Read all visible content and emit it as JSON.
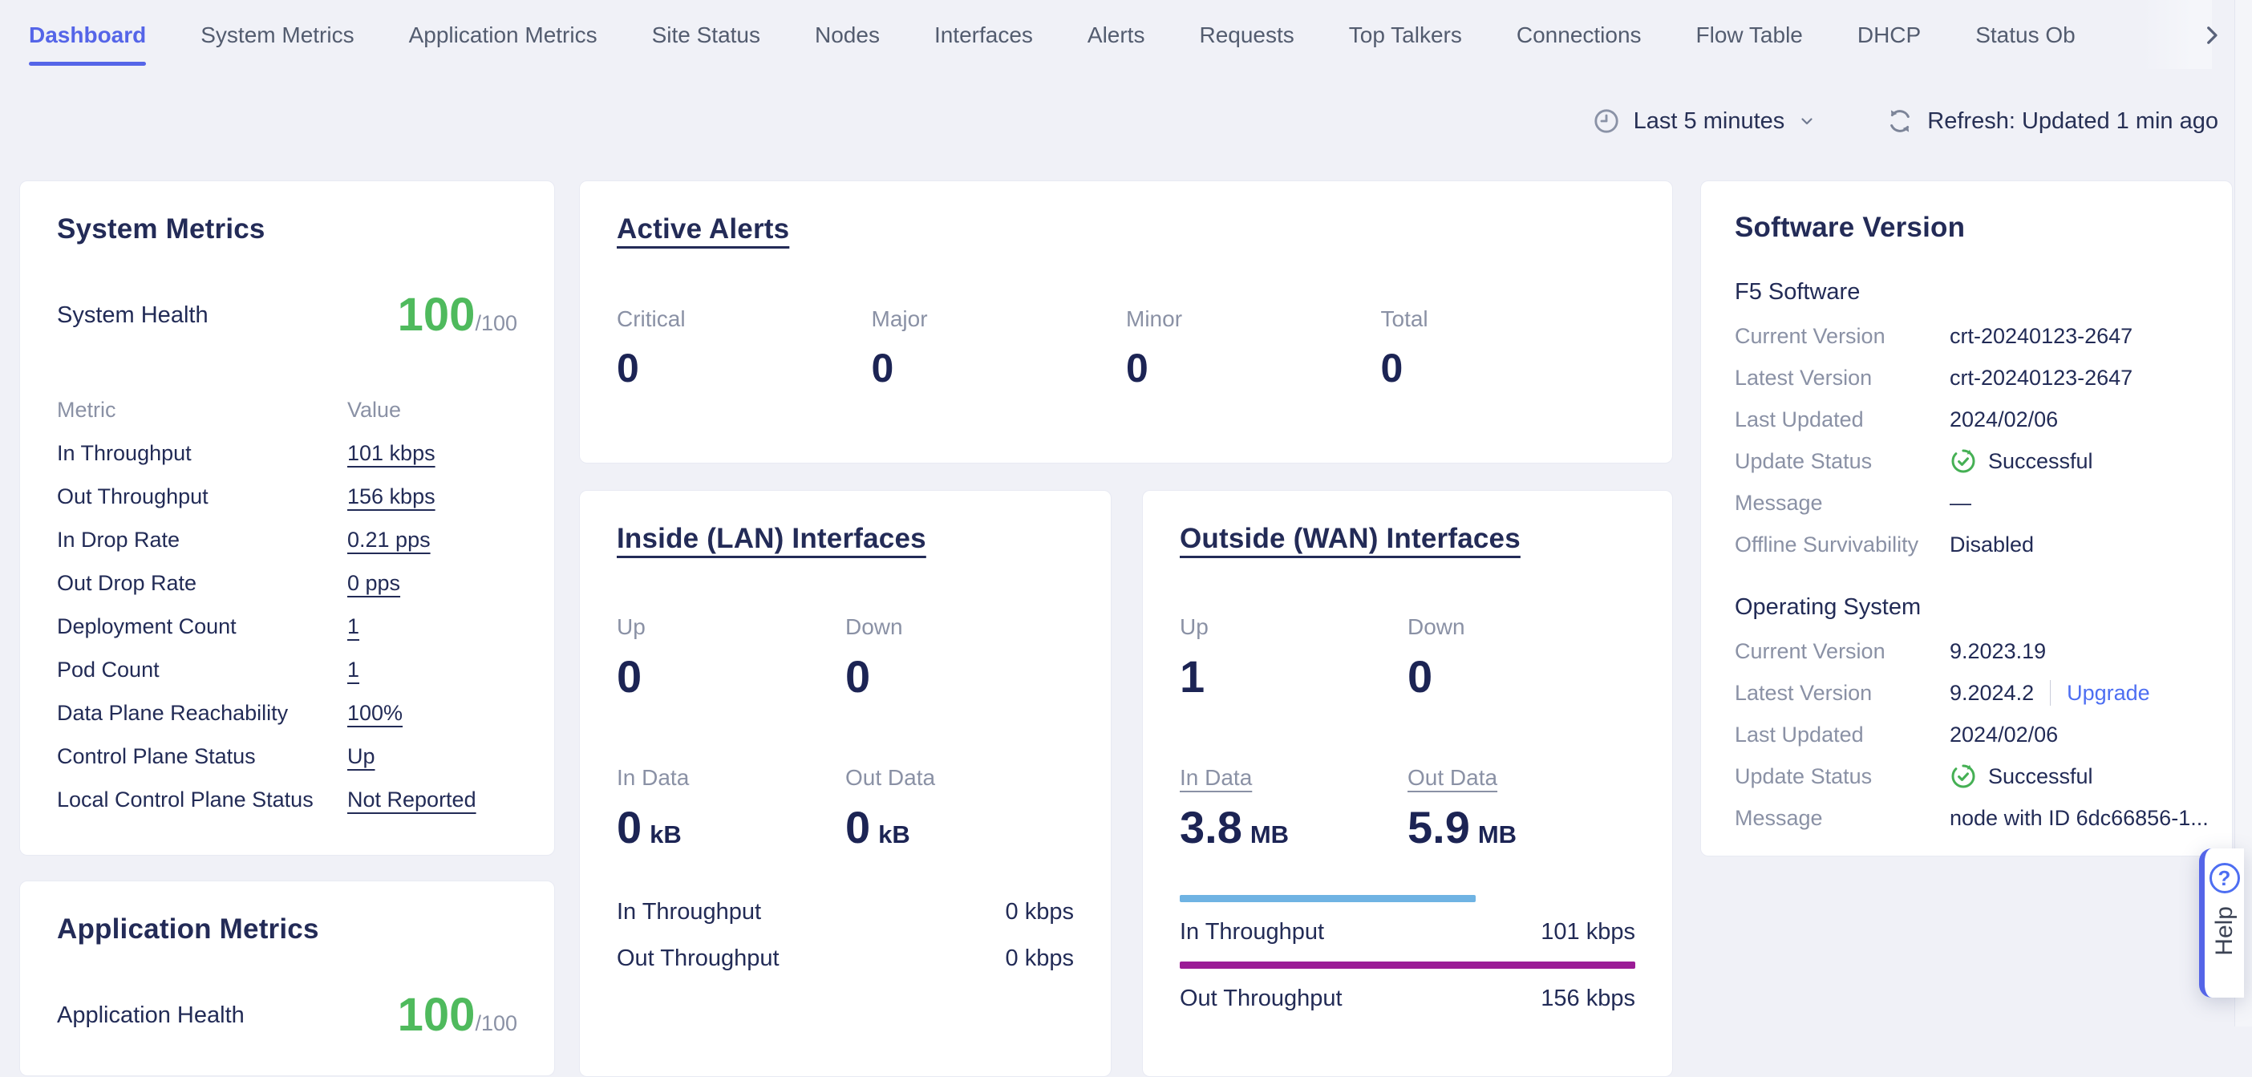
{
  "colors": {
    "accent_blue": "#5565e8",
    "link_blue": "#4d6ef2",
    "health_green": "#4fba5d",
    "success_green": "#45b054",
    "in_throughput_bar": "#6fb3e3",
    "out_throughput_bar": "#9b1c96"
  },
  "nav": {
    "tabs": [
      {
        "label": "Dashboard",
        "active": true
      },
      {
        "label": "System Metrics"
      },
      {
        "label": "Application Metrics"
      },
      {
        "label": "Site Status"
      },
      {
        "label": "Nodes"
      },
      {
        "label": "Interfaces"
      },
      {
        "label": "Alerts"
      },
      {
        "label": "Requests"
      },
      {
        "label": "Top Talkers"
      },
      {
        "label": "Connections"
      },
      {
        "label": "Flow Table"
      },
      {
        "label": "DHCP"
      },
      {
        "label": "Status Ob",
        "truncated": true
      }
    ]
  },
  "toolbar": {
    "time_range": "Last 5 minutes",
    "refresh_label": "Refresh: Updated 1 min ago"
  },
  "system_metrics": {
    "title": "System Metrics",
    "health_label": "System Health",
    "health_score": "100",
    "health_denominator": "/100",
    "col_metric": "Metric",
    "col_value": "Value",
    "rows": [
      {
        "label": "In Throughput",
        "value": "101 kbps"
      },
      {
        "label": "Out Throughput",
        "value": "156 kbps"
      },
      {
        "label": "In Drop Rate",
        "value": "0.21 pps"
      },
      {
        "label": "Out Drop Rate",
        "value": "0 pps"
      },
      {
        "label": "Deployment Count",
        "value": "1"
      },
      {
        "label": "Pod Count",
        "value": "1"
      },
      {
        "label": "Data Plane Reachability",
        "value": "100%"
      },
      {
        "label": "Control Plane Status",
        "value": "Up"
      },
      {
        "label": "Local Control Plane Status",
        "value": "Not Reported"
      }
    ]
  },
  "application_metrics": {
    "title": "Application Metrics",
    "health_label": "Application Health",
    "health_score": "100",
    "health_denominator": "/100"
  },
  "active_alerts": {
    "title": "Active Alerts",
    "stats": [
      {
        "label": "Critical",
        "value": "0"
      },
      {
        "label": "Major",
        "value": "0"
      },
      {
        "label": "Minor",
        "value": "0"
      },
      {
        "label": "Total",
        "value": "0"
      }
    ]
  },
  "lan": {
    "title": "Inside (LAN) Interfaces",
    "stats": [
      {
        "label": "Up",
        "value": "0"
      },
      {
        "label": "Down",
        "value": "0"
      }
    ],
    "data_stats": [
      {
        "label": "In Data",
        "value": "0",
        "unit": "kB",
        "link": false
      },
      {
        "label": "Out Data",
        "value": "0",
        "unit": "kB",
        "link": false
      }
    ],
    "throughput": [
      {
        "label": "In Throughput",
        "value": "0 kbps"
      },
      {
        "label": "Out Throughput",
        "value": "0 kbps"
      }
    ]
  },
  "wan": {
    "title": "Outside (WAN) Interfaces",
    "stats": [
      {
        "label": "Up",
        "value": "1"
      },
      {
        "label": "Down",
        "value": "0"
      }
    ],
    "data_stats": [
      {
        "label": "In Data",
        "value": "3.8",
        "unit": "MB",
        "link": true
      },
      {
        "label": "Out Data",
        "value": "5.9",
        "unit": "MB",
        "link": true
      }
    ],
    "throughput": [
      {
        "label": "In Throughput",
        "value": "101 kbps",
        "bar_color": "#6fb3e3",
        "bar_width": "65%"
      },
      {
        "label": "Out Throughput",
        "value": "156 kbps",
        "bar_color": "#9b1c96",
        "bar_width": "100%"
      }
    ]
  },
  "software_version": {
    "title": "Software Version",
    "sections": [
      {
        "heading": "F5 Software",
        "rows": [
          {
            "label": "Current Version",
            "value": "crt-20240123-2647"
          },
          {
            "label": "Latest Version",
            "value": "crt-20240123-2647"
          },
          {
            "label": "Last Updated",
            "value": "2024/02/06"
          },
          {
            "label": "Update Status",
            "value": "Successful",
            "status": "success"
          },
          {
            "label": "Message",
            "value": "—"
          },
          {
            "label": "Offline Survivability",
            "value": "Disabled"
          }
        ]
      },
      {
        "heading": "Operating System",
        "rows": [
          {
            "label": "Current Version",
            "value": "9.2023.19"
          },
          {
            "label": "Latest Version",
            "value": "9.2024.2",
            "link": "Upgrade"
          },
          {
            "label": "Last Updated",
            "value": "2024/02/06"
          },
          {
            "label": "Update Status",
            "value": "Successful",
            "status": "success"
          },
          {
            "label": "Message",
            "value": "node with ID 6dc66856-1..."
          }
        ]
      }
    ]
  },
  "help": {
    "label": "Help"
  }
}
